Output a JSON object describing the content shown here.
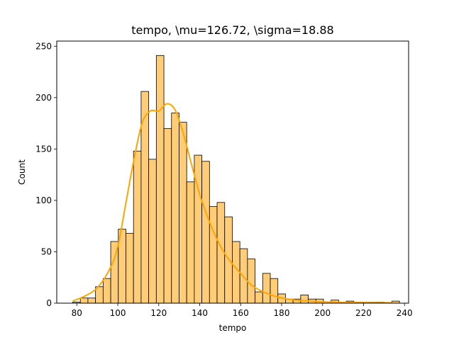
{
  "chart_data": {
    "type": "bar",
    "title": "tempo, \\mu=126.72, \\sigma=18.88",
    "xlabel": "tempo",
    "ylabel": "Count",
    "xlim": [
      70.2,
      242.0
    ],
    "ylim": [
      0,
      255
    ],
    "xticks": [
      80,
      100,
      120,
      140,
      160,
      180,
      200,
      220,
      240
    ],
    "yticks": [
      0,
      50,
      100,
      150,
      200,
      250
    ],
    "bin_start": 78.0,
    "bin_width": 3.71,
    "counts": [
      1,
      5,
      5,
      16,
      24,
      60,
      72,
      68,
      148,
      206,
      140,
      241,
      170,
      185,
      176,
      118,
      144,
      138,
      94,
      98,
      84,
      60,
      53,
      43,
      11,
      29,
      24,
      9,
      4,
      4,
      8,
      4,
      4,
      1,
      3,
      1,
      2,
      1,
      1,
      1,
      1,
      0,
      2
    ],
    "colors": {
      "bar_fill": "#ffcc77",
      "bar_edge": "#000000",
      "kde_line": "#ffa500"
    },
    "kde": {
      "x": [
        78,
        84,
        90,
        96,
        100,
        104,
        108,
        112,
        116,
        120,
        124,
        128,
        132,
        136,
        140,
        144,
        148,
        152,
        156,
        160,
        165,
        170,
        175,
        180,
        185,
        190,
        195,
        200,
        210,
        220,
        234
      ],
      "y": [
        2,
        7,
        15,
        33,
        55,
        98,
        141,
        176,
        187,
        187,
        194,
        188,
        165,
        135,
        106,
        83,
        64,
        49,
        38,
        29,
        18,
        12,
        8,
        5,
        3.5,
        2.5,
        1.8,
        1.3,
        0.8,
        0.6,
        0.4
      ]
    }
  }
}
